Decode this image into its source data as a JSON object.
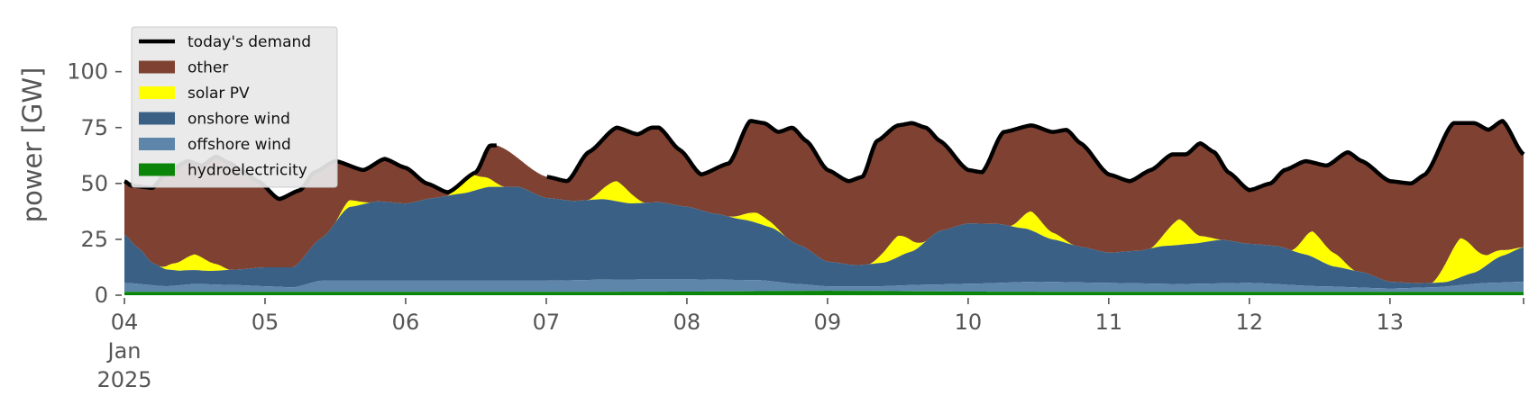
{
  "chart_data": {
    "type": "area",
    "title": "",
    "xlabel": "",
    "ylabel": "power [GW]",
    "ylim": [
      0,
      120
    ],
    "xlim": [
      0,
      9.95
    ],
    "x_unit": "days from 04 Jan 2025",
    "y_ticks": [
      0,
      25,
      50,
      75,
      100
    ],
    "x_ticks": [
      {
        "x": 0,
        "label": "04",
        "sub1": "Jan",
        "sub2": "2025"
      },
      {
        "x": 1,
        "label": "05"
      },
      {
        "x": 2,
        "label": "06"
      },
      {
        "x": 3,
        "label": "07"
      },
      {
        "x": 4,
        "label": "08"
      },
      {
        "x": 5,
        "label": "09"
      },
      {
        "x": 6,
        "label": "10"
      },
      {
        "x": 7,
        "label": "11"
      },
      {
        "x": 8,
        "label": "12"
      },
      {
        "x": 9,
        "label": "13"
      }
    ],
    "grid": false,
    "legend_position": "top-left",
    "legend": [
      {
        "label": "today's demand",
        "kind": "line",
        "color": "#000000"
      },
      {
        "label": "other",
        "kind": "patch",
        "color": "#7f4232"
      },
      {
        "label": "solar PV",
        "kind": "patch",
        "color": "#ffff00"
      },
      {
        "label": "onshore wind",
        "kind": "patch",
        "color": "#3a6185"
      },
      {
        "label": "offshore wind",
        "kind": "patch",
        "color": "#5e86ab"
      },
      {
        "label": "hydroelectricity",
        "kind": "patch",
        "color": "#0a850a"
      }
    ],
    "stacked_series": [
      {
        "name": "hydroelectricity",
        "color": "#0a850a",
        "x": [
          0,
          1,
          2,
          3,
          4,
          5,
          6,
          7,
          8,
          9,
          9.95
        ],
        "values": [
          1.5,
          1.5,
          1.5,
          1.5,
          1.6,
          2.0,
          1.6,
          1.5,
          1.5,
          1.5,
          1.5
        ]
      },
      {
        "name": "offshore wind",
        "color": "#5e86ab",
        "x": [
          0,
          0.3,
          0.5,
          0.8,
          1.0,
          1.2,
          1.4,
          2.0,
          2.5,
          3.0,
          3.5,
          4.0,
          4.5,
          4.8,
          5.0,
          5.3,
          5.7,
          6.0,
          6.5,
          7.0,
          7.5,
          8.0,
          8.5,
          9.0,
          9.3,
          9.7,
          9.95
        ],
        "values": [
          4.0,
          2.5,
          3.5,
          3.0,
          2.5,
          2.0,
          5.0,
          5.0,
          5.0,
          5.0,
          5.5,
          5.5,
          5.0,
          3.0,
          2.0,
          2.0,
          3.0,
          3.5,
          4.5,
          4.0,
          3.5,
          4.0,
          2.5,
          1.5,
          2.0,
          4.0,
          4.5
        ]
      },
      {
        "name": "onshore wind",
        "color": "#3a6185",
        "x": [
          0,
          0.1,
          0.2,
          0.3,
          0.4,
          0.6,
          0.8,
          1.0,
          1.2,
          1.4,
          1.6,
          1.8,
          2.0,
          2.2,
          2.4,
          2.6,
          2.8,
          3.0,
          3.2,
          3.4,
          3.6,
          3.8,
          4.0,
          4.2,
          4.4,
          4.6,
          4.8,
          5.0,
          5.2,
          5.4,
          5.6,
          5.8,
          6.0,
          6.2,
          6.4,
          6.6,
          6.8,
          7.0,
          7.2,
          7.4,
          7.6,
          7.8,
          8.0,
          8.2,
          8.4,
          8.6,
          8.8,
          9.0,
          9.2,
          9.4,
          9.6,
          9.8,
          9.95
        ],
        "values": [
          21.5,
          16,
          10,
          7.5,
          6.5,
          6,
          7,
          8.5,
          9,
          19,
          33,
          35.5,
          34.5,
          37,
          39,
          42,
          42,
          37,
          35.5,
          36,
          34,
          34.5,
          32.5,
          29.5,
          27,
          24,
          17.5,
          11,
          9.5,
          10.5,
          15,
          24,
          27,
          26.5,
          24,
          19,
          16,
          13.5,
          14.5,
          17,
          18,
          19.5,
          17.5,
          17,
          14,
          9,
          7,
          3,
          2,
          2,
          5,
          12,
          15.5
        ]
      },
      {
        "name": "solar PV",
        "color": "#ffff00",
        "x": [
          0,
          0.25,
          0.35,
          0.5,
          0.65,
          0.75,
          1.0,
          1.5,
          1.6,
          1.75,
          2.0,
          2.3,
          2.45,
          2.55,
          2.7,
          3.0,
          3.3,
          3.5,
          3.7,
          4.0,
          4.3,
          4.5,
          4.7,
          5.0,
          5.3,
          5.5,
          5.7,
          6.0,
          6.3,
          6.45,
          6.6,
          6.75,
          7.0,
          7.3,
          7.5,
          7.65,
          7.8,
          8.0,
          8.3,
          8.45,
          8.6,
          8.75,
          9.0,
          9.3,
          9.5,
          9.7,
          9.95
        ],
        "values": [
          0,
          0,
          3,
          7,
          3,
          0,
          0,
          0,
          3,
          0,
          0,
          0,
          8,
          5,
          0,
          0,
          0,
          9,
          0,
          0,
          0,
          4.5,
          0,
          0,
          0,
          9.5,
          0,
          0,
          0,
          8.5,
          3,
          0,
          0,
          0,
          11.5,
          3,
          0,
          0,
          0,
          11.5,
          6,
          0,
          0,
          0,
          17.5,
          4,
          0
        ]
      }
    ],
    "other_top_note": "other fills from the top of solar PV up to today's demand",
    "other_gap": [
      6.55,
      2.9
    ],
    "demand": {
      "name": "today's demand",
      "color": "#000000",
      "x": [
        0,
        0.05,
        0.2,
        0.3,
        0.45,
        0.55,
        0.65,
        0.75,
        0.85,
        0.95,
        1.1,
        1.25,
        1.35,
        1.5,
        1.7,
        1.85,
        2.0,
        2.15,
        2.3,
        2.5,
        2.6,
        2.65,
        2.9,
        3.0,
        3.15,
        3.3,
        3.5,
        3.65,
        3.75,
        3.8,
        3.95,
        4.1,
        4.3,
        4.45,
        4.55,
        4.65,
        4.75,
        4.85,
        5.0,
        5.15,
        5.25,
        5.35,
        5.5,
        5.6,
        5.7,
        5.8,
        6.0,
        6.1,
        6.25,
        6.45,
        6.6,
        6.7,
        6.8,
        7.0,
        7.15,
        7.3,
        7.45,
        7.55,
        7.65,
        7.75,
        7.85,
        8.0,
        8.15,
        8.25,
        8.4,
        8.55,
        8.7,
        8.8,
        9.0,
        9.15,
        9.25,
        9.45,
        9.6,
        9.7,
        9.8,
        9.95
      ],
      "values": [
        51,
        49,
        48,
        55,
        60,
        58,
        62,
        59,
        55,
        51,
        43,
        47,
        55,
        60,
        56,
        61,
        57,
        50,
        46,
        55,
        67,
        67,
        null,
        53,
        51,
        64,
        75,
        72,
        75,
        75,
        65,
        54,
        59,
        78,
        77,
        73,
        75,
        69,
        56,
        51,
        53,
        69,
        76,
        77,
        75,
        69,
        56,
        55,
        73,
        76,
        73,
        74,
        68,
        54,
        51,
        56,
        63,
        63,
        68,
        64,
        55,
        47,
        50,
        56,
        60,
        58,
        64,
        60,
        51,
        50,
        54,
        77,
        77,
        74,
        78,
        63
      ]
    }
  }
}
